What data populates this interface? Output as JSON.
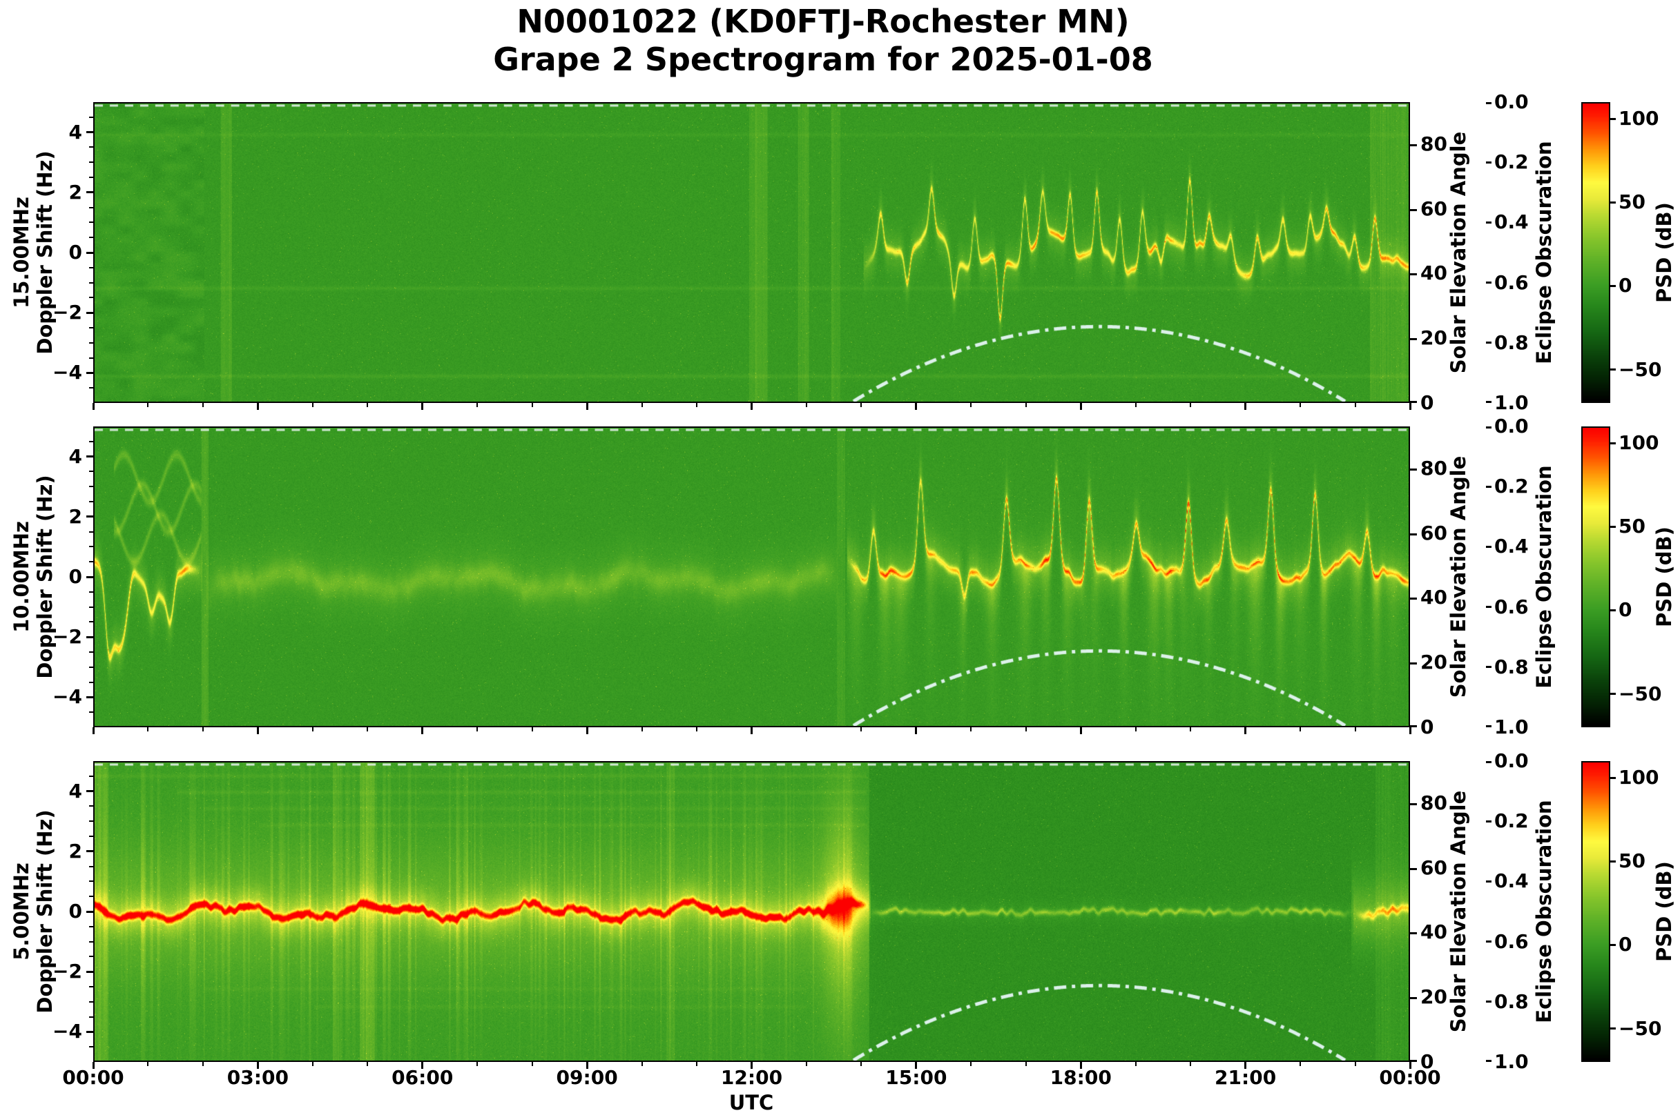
{
  "title": {
    "line1": "N0001022 (KD0FTJ-Rochester MN)",
    "line2": "Grape 2 Spectrogram for 2025-01-08"
  },
  "x_axis": {
    "label": "UTC",
    "tick_hours": [
      0,
      3,
      6,
      9,
      12,
      15,
      18,
      21,
      24
    ],
    "tick_labels": [
      "00:00",
      "03:00",
      "06:00",
      "09:00",
      "12:00",
      "15:00",
      "18:00",
      "21:00",
      "00:00"
    ],
    "range_hours": [
      0,
      24
    ]
  },
  "doppler_axis": {
    "label": "Doppler Shift (Hz)",
    "values": [
      4,
      2,
      0,
      -2,
      -4
    ],
    "labels": [
      "4",
      "2",
      "0",
      "−2",
      "−4"
    ],
    "range": [
      -5,
      5
    ]
  },
  "solar_axis": {
    "label": "Solar Elevation Angle",
    "values": [
      80,
      60,
      40,
      20,
      0
    ],
    "labels": [
      "80",
      "60",
      "40",
      "20",
      "0"
    ],
    "range": [
      0,
      93
    ]
  },
  "eclipse_axis": {
    "label": "Eclipse Obscuration",
    "values": [
      0,
      0.2,
      0.4,
      0.6,
      0.8,
      1
    ],
    "labels": [
      "0.0",
      "0.2",
      "0.4",
      "0.6",
      "0.8",
      "1.0"
    ],
    "range": [
      0,
      1
    ]
  },
  "colorbar": {
    "label": "PSD (dB)",
    "values": [
      100,
      50,
      0,
      -50
    ],
    "labels": [
      "100",
      "50",
      "0",
      "−50"
    ],
    "range": [
      -70,
      110
    ]
  },
  "panels": [
    {
      "freq_label": "15.00MHz",
      "doppler_label": "Doppler Shift (Hz)"
    },
    {
      "freq_label": "10.00MHz",
      "doppler_label": "Doppler Shift (Hz)"
    },
    {
      "freq_label": "5.00MHz",
      "doppler_label": "Doppler Shift (Hz)"
    }
  ],
  "chart_data": {
    "type": "heatmap",
    "title": "N0001022 (KD0FTJ-Rochester MN) — Grape 2 Spectrogram for 2025-01-08",
    "station": {
      "node": "N0001022",
      "callsign": "KD0FTJ",
      "location": "Rochester MN"
    },
    "date": "2025-01-08",
    "x": {
      "label": "UTC",
      "unit": "hours",
      "range": [
        0,
        24
      ]
    },
    "y": {
      "label": "Doppler Shift (Hz)",
      "range": [
        -5,
        5
      ]
    },
    "z": {
      "label": "PSD (dB)",
      "range": [
        -70,
        110
      ]
    },
    "solar_elevation": {
      "axis_label": "Solar Elevation Angle",
      "axis_range": [
        0,
        93
      ],
      "style": "dash-dot",
      "color": "#e2f4f4",
      "peak_deg": 23.4,
      "peak_hour": 18.35,
      "half_width_hours": 4.5,
      "points": [
        [
          14,
          1.5
        ],
        [
          15,
          10.4
        ],
        [
          16,
          17.0
        ],
        [
          17,
          21.3
        ],
        [
          18,
          23.3
        ],
        [
          18.35,
          23.4
        ],
        [
          19,
          22.9
        ],
        [
          20,
          20.3
        ],
        [
          21,
          15.3
        ],
        [
          22,
          8.0
        ],
        [
          22.85,
          0
        ]
      ]
    },
    "eclipse_obscuration": {
      "axis_label": "Eclipse Obscuration",
      "axis_range": [
        0,
        1
      ],
      "style": "dashed",
      "value": 0.0
    },
    "panels": [
      {
        "frequency": "15.00MHz",
        "render": {
          "seed": 101,
          "base": -2,
          "sigma": 5.5,
          "blotch": {
            "t1": 2.0,
            "amp": 10,
            "scale": 22
          },
          "bands": [
            {
              "t0": 2.3,
              "t1": 2.5,
              "boost": 9
            },
            {
              "t0": 11.95,
              "t1": 12.3,
              "boost": 10
            },
            {
              "t0": 12.85,
              "t1": 13.05,
              "boost": 8
            },
            {
              "t0": 13.45,
              "t1": 13.62,
              "boost": 7
            },
            {
              "t0": 23.3,
              "t1": 24,
              "boost": 8
            }
          ],
          "hlines": [
            {
              "hz": -4.15,
              "boost": 6,
              "t0": 0,
              "t1": 24
            },
            {
              "hz": -1.2,
              "boost": 5,
              "t0": 0,
              "t1": 24
            },
            {
              "hz": 3.95,
              "boost": 4,
              "t0": 0,
              "t1": 24
            }
          ],
          "trace": [
            {
              "t0": 14.05,
              "t1": 24,
              "amp": 60,
              "th": 0.09,
              "glow": 13,
              "gs": 0.45,
              "w1": 0.45,
              "f1": 2.6,
              "w2": 0.3,
              "f2": 6.1,
              "spikes": {
                "n": 22,
                "amp": 2.0,
                "sw": 0.045,
                "sign": 0.75
              }
            }
          ]
        }
      },
      {
        "frequency": "10.00MHz",
        "render": {
          "seed": 202,
          "base": -2,
          "sigma": 5.5,
          "bands": [
            {
              "t0": 1.95,
              "t1": 2.08,
              "boost": 9
            },
            {
              "t0": 13.55,
              "t1": 13.7,
              "boost": 5
            }
          ],
          "hlines": [],
          "wavy": {
            "t0": 0.35,
            "t1": 1.95,
            "amp": 18,
            "centers": [
              1.3,
              2.3,
              3.3
            ],
            "wobble": 0.8,
            "wfreq": 6.5
          },
          "trace": [
            {
              "t0": 0,
              "t1": 1.95,
              "amp": 58,
              "th": 0.11,
              "glow": 15,
              "gs": 0.5,
              "w1": 0.35,
              "f1": 3.1,
              "w2": 0.25,
              "f2": 7.3,
              "dip": {
                "t": 0.45,
                "amp": -2.3,
                "w": 0.15
              },
              "spikes": {
                "n": 4,
                "amp": 1.6,
                "sw": 0.06,
                "sign": 0.3
              }
            },
            {
              "t0": 2.05,
              "t1": 13.55,
              "amp": 15,
              "th": 0.28,
              "glow": 7,
              "gs": 0.75,
              "off": -0.15,
              "w1": 0.22,
              "f1": 1.9,
              "w2": 0.12,
              "f2": 5.1
            },
            {
              "t0": 13.75,
              "t1": 24,
              "amp": 58,
              "th": 0.1,
              "glow": 15,
              "gs": 0.5,
              "off": 0.25,
              "w1": 0.3,
              "f1": 3.3,
              "w2": 0.2,
              "f2": 8.2,
              "spikes": {
                "n": 12,
                "amp": 2.4,
                "sw": 0.05,
                "sign": 0.8
              },
              "plumes": {
                "every": 0.42,
                "amp": 24,
                "decay": 1.9
              },
              "upfuzz": 8
            }
          ]
        }
      },
      {
        "frequency": "5.00MHz",
        "render": {
          "seed": 303,
          "baseLeft": 1,
          "baseRight": -7,
          "splitT": 14.15,
          "sigma": 6,
          "streaks": {
            "t1": 14.15,
            "amp": 26
          },
          "cloud": [
            {
              "t0": 0,
              "t1": 14.15,
              "sigma": 1.5,
              "boost": 16
            },
            {
              "t0": 22.95,
              "t1": 24,
              "sigma": 1.0,
              "boost": 12
            }
          ],
          "bands": [
            {
              "t0": 0,
              "t1": 0.25,
              "boost": 10
            },
            {
              "t0": 4.85,
              "t1": 5.12,
              "boost": 13
            },
            {
              "t0": 4.35,
              "t1": 4.5,
              "boost": 7
            },
            {
              "t0": 10.45,
              "t1": 10.6,
              "boost": 6
            },
            {
              "t0": 23.4,
              "t1": 24,
              "boost": 6
            }
          ],
          "hlines": [
            {
              "hz": 4.55,
              "boost": 5,
              "t0": 0,
              "t1": 14.1
            },
            {
              "hz": 4.0,
              "boost": 5,
              "t0": 1.5,
              "t1": 14.1
            },
            {
              "hz": 3.45,
              "boost": 4,
              "t0": 2,
              "t1": 14.1
            },
            {
              "hz": 2.9,
              "boost": 4,
              "t0": 3,
              "t1": 14.1
            },
            {
              "hz": -2.6,
              "boost": 3,
              "t0": 2,
              "t1": 13
            },
            {
              "hz": -3.2,
              "boost": 3,
              "t0": 4,
              "t1": 13
            }
          ],
          "burst": {
            "t": 13.62,
            "w": 0.5,
            "wide": 26,
            "core": 40
          },
          "trace": [
            {
              "t0": 0,
              "t1": 14.15,
              "amp": 82,
              "th": 0.09,
              "glow": 26,
              "gs": 0.42,
              "w1": 0.18,
              "f1": 2.2,
              "w2": 0.1,
              "f2": 6.3
            },
            {
              "t0": 14.15,
              "t1": 23.0,
              "amp": 34,
              "th": 0.06,
              "glow": 5,
              "gs": 0.25,
              "w1": 0.02,
              "f1": 2.0,
              "w2": 0.01,
              "f2": 5.0
            },
            {
              "t0": 23.0,
              "t1": 24,
              "amp": 50,
              "th": 0.1,
              "glow": 14,
              "gs": 0.5,
              "w1": 0.1,
              "f1": 2.0,
              "w2": 0.05,
              "f2": 5.0
            }
          ]
        }
      }
    ]
  }
}
